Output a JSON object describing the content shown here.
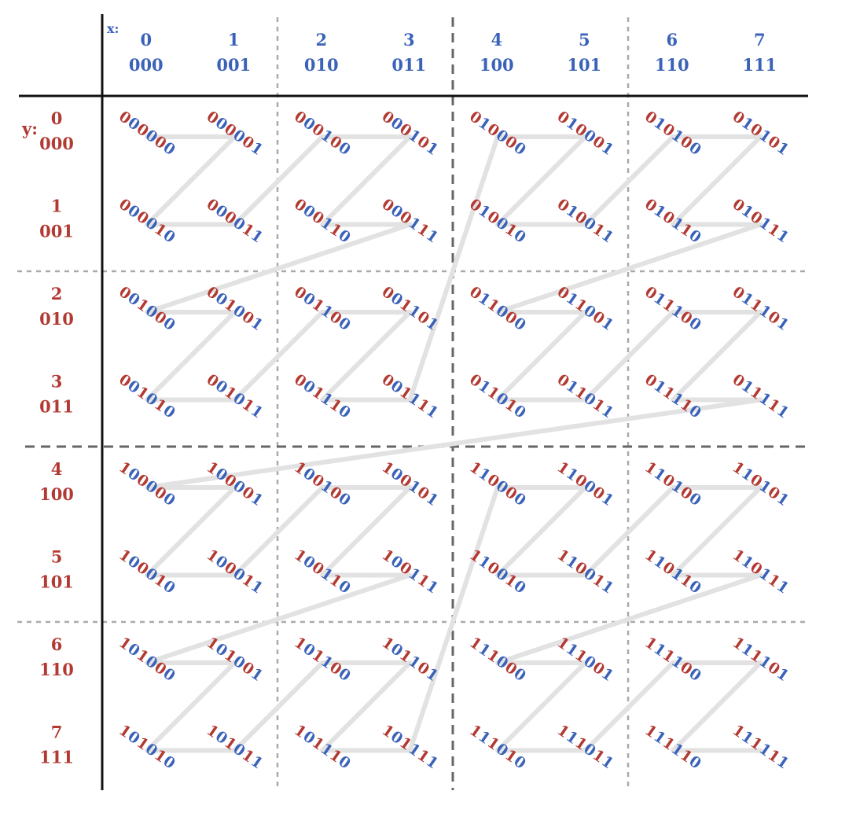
{
  "axis_labels": {
    "x": "x:",
    "y": "y:"
  },
  "colors": {
    "x_bits": "#3a62b8",
    "y_bits": "#b23a33",
    "axis": "#111111",
    "major_grid": "#666666",
    "minor_grid": "#aaaaaa",
    "curve": "#e2e2e2"
  },
  "columns": [
    {
      "dec": "0",
      "bin": "000"
    },
    {
      "dec": "1",
      "bin": "001"
    },
    {
      "dec": "2",
      "bin": "010"
    },
    {
      "dec": "3",
      "bin": "011"
    },
    {
      "dec": "4",
      "bin": "100"
    },
    {
      "dec": "5",
      "bin": "101"
    },
    {
      "dec": "6",
      "bin": "110"
    },
    {
      "dec": "7",
      "bin": "111"
    }
  ],
  "rows": [
    {
      "dec": "0",
      "bin": "000"
    },
    {
      "dec": "1",
      "bin": "001"
    },
    {
      "dec": "2",
      "bin": "010"
    },
    {
      "dec": "3",
      "bin": "011"
    },
    {
      "dec": "4",
      "bin": "100"
    },
    {
      "dec": "5",
      "bin": "101"
    },
    {
      "dec": "6",
      "bin": "110"
    },
    {
      "dec": "7",
      "bin": "111"
    }
  ],
  "cells": [
    [
      "000000",
      "000001",
      "000100",
      "000101",
      "010000",
      "010001",
      "010100",
      "010101"
    ],
    [
      "000010",
      "000011",
      "000110",
      "000111",
      "010010",
      "010011",
      "010110",
      "010111"
    ],
    [
      "001000",
      "001001",
      "001100",
      "001101",
      "011000",
      "011001",
      "011100",
      "011101"
    ],
    [
      "001010",
      "001011",
      "001110",
      "001111",
      "011010",
      "011011",
      "011110",
      "011111"
    ],
    [
      "100000",
      "100001",
      "100100",
      "100101",
      "110000",
      "110001",
      "110100",
      "110101"
    ],
    [
      "100010",
      "100011",
      "100110",
      "100111",
      "110010",
      "110011",
      "110110",
      "110111"
    ],
    [
      "101000",
      "101001",
      "101100",
      "101101",
      "111000",
      "111001",
      "111100",
      "111101"
    ],
    [
      "101010",
      "101011",
      "101110",
      "101111",
      "111010",
      "111011",
      "111110",
      "111111"
    ]
  ]
}
